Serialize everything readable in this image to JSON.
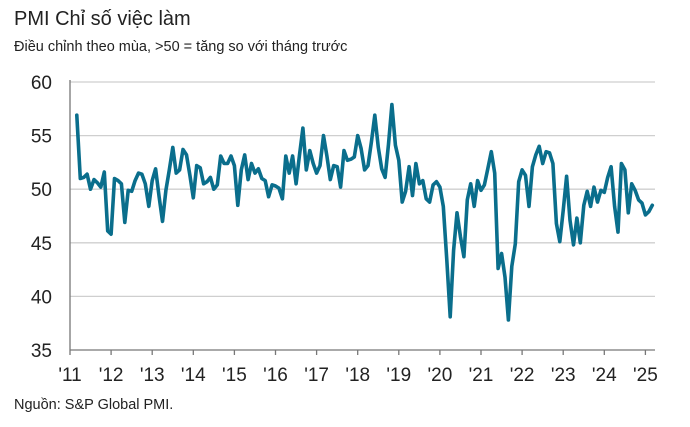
{
  "chart_data": {
    "type": "line",
    "title": "PMI Chỉ số việc làm",
    "subtitle": "Điều chỉnh theo mùa, >50 = tăng so với tháng trước",
    "source": "Nguồn: S&P Global PMI.",
    "xlabel": "",
    "ylabel": "",
    "ylim": [
      35,
      60
    ],
    "yticks": [
      "35",
      "40",
      "45",
      "50",
      "55",
      "60"
    ],
    "xticks": [
      "'11",
      "'12",
      "'13",
      "'14",
      "'15",
      "'16",
      "'17",
      "'18",
      "'19",
      "'20",
      "'21",
      "'22",
      "'23",
      "'24",
      "'25"
    ],
    "grid": true,
    "line_color": "#0a6e8c",
    "series": [
      {
        "name": "PMI Chỉ số việc làm",
        "start": "2011-03",
        "frequency": "monthly",
        "values": [
          56.9,
          51.0,
          51.1,
          51.4,
          50.0,
          50.9,
          50.6,
          50.2,
          51.6,
          46.1,
          45.8,
          51.0,
          50.8,
          50.5,
          46.9,
          49.9,
          49.8,
          50.8,
          51.5,
          51.4,
          50.5,
          48.4,
          50.8,
          51.9,
          49.3,
          47.0,
          49.9,
          51.8,
          53.9,
          51.5,
          51.8,
          53.7,
          53.2,
          51.3,
          49.2,
          52.2,
          52.0,
          50.5,
          50.7,
          51.1,
          50.0,
          50.4,
          53.1,
          52.4,
          52.4,
          53.1,
          52.2,
          48.5,
          51.8,
          53.2,
          50.9,
          52.4,
          51.5,
          51.9,
          51.0,
          50.8,
          49.3,
          50.4,
          50.3,
          50.1,
          49.1,
          53.1,
          51.5,
          53.1,
          50.5,
          53.2,
          55.7,
          51.8,
          53.6,
          52.4,
          51.5,
          52.2,
          55.0,
          53.1,
          50.9,
          52.2,
          52.1,
          50.2,
          53.6,
          52.7,
          52.8,
          53.0,
          55.0,
          53.8,
          51.8,
          52.2,
          54.4,
          56.9,
          53.9,
          51.9,
          51.1,
          54.2,
          57.9,
          54.1,
          52.7,
          48.8,
          49.8,
          52.1,
          49.4,
          52.4,
          50.5,
          50.8,
          49.1,
          48.8,
          50.4,
          50.7,
          50.2,
          48.4,
          43.4,
          38.1,
          44.3,
          47.8,
          45.6,
          43.7,
          49.0,
          50.5,
          48.4,
          50.8,
          49.9,
          50.4,
          51.9,
          53.5,
          51.5,
          42.6,
          44.0,
          41.8,
          37.8,
          42.8,
          44.9,
          50.7,
          51.8,
          51.3,
          48.4,
          52.1,
          53.2,
          54.0,
          52.4,
          53.5,
          53.4,
          52.4,
          46.8,
          45.1,
          48.0,
          51.2,
          47.1,
          44.8,
          47.3,
          45.0,
          48.5,
          49.8,
          48.4,
          50.2,
          48.8,
          49.9,
          49.7,
          51.1,
          52.1,
          48.4,
          46.0,
          52.4,
          51.8,
          47.8,
          50.5,
          49.9,
          49.0,
          48.7,
          47.6,
          47.9,
          48.5
        ]
      }
    ]
  }
}
